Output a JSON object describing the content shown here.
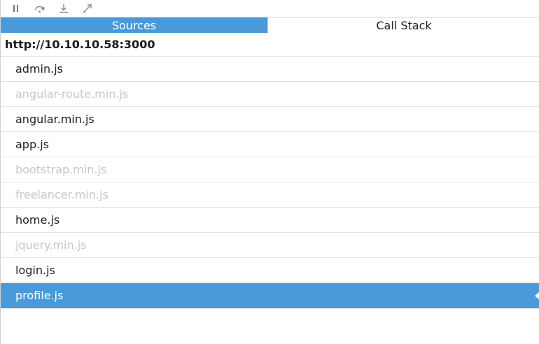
{
  "toolbar": {
    "buttons": [
      {
        "icon": "pause-icon"
      },
      {
        "icon": "step-over-icon"
      },
      {
        "icon": "step-in-icon"
      },
      {
        "icon": "step-out-icon"
      }
    ]
  },
  "tabs": [
    {
      "label": "Sources",
      "active": true
    },
    {
      "label": "Call Stack",
      "active": false
    }
  ],
  "origin": "http://10.10.10.58:3000",
  "files": [
    {
      "name": "admin.js",
      "dim": false,
      "selected": false
    },
    {
      "name": "angular-route.min.js",
      "dim": true,
      "selected": false
    },
    {
      "name": "angular.min.js",
      "dim": false,
      "selected": false
    },
    {
      "name": "app.js",
      "dim": false,
      "selected": false
    },
    {
      "name": "bootstrap.min.js",
      "dim": true,
      "selected": false
    },
    {
      "name": "freelancer.min.js",
      "dim": true,
      "selected": false
    },
    {
      "name": "home.js",
      "dim": false,
      "selected": false
    },
    {
      "name": "jquery.min.js",
      "dim": true,
      "selected": false
    },
    {
      "name": "login.js",
      "dim": false,
      "selected": false
    },
    {
      "name": "profile.js",
      "dim": false,
      "selected": true
    }
  ],
  "colors": {
    "accent": "#4a9ad9",
    "dim_text": "#c2c8cf"
  }
}
